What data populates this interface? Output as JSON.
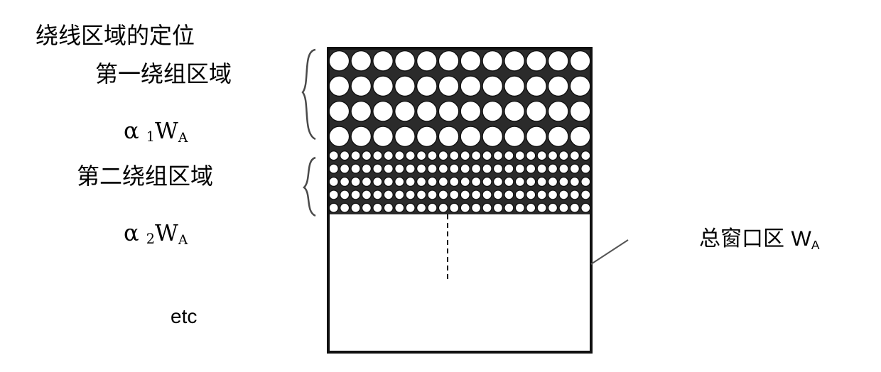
{
  "labels": {
    "title": "绕线区域的定位",
    "region1": "第一绕组区域",
    "alpha1": {
      "greek": "α",
      "index": "1",
      "symbol": "W",
      "subscript": "A"
    },
    "region2": "第二绕组区域",
    "alpha2": {
      "greek": "α",
      "index": "2",
      "symbol": "W",
      "subscript": "A"
    },
    "etc": "etc",
    "window": {
      "text": "总窗口区",
      "symbol": "W",
      "subscript": "A"
    }
  },
  "diagram": {
    "region1_rows": 4,
    "region1_cols": 12,
    "region2_rows": 5,
    "region2_cols": 24,
    "colors": {
      "stroke": "#111111",
      "fill": "#ffffff",
      "gap": "#2b2b2b",
      "brace": "#4a4a4a",
      "brace_edge": "#c8a060"
    }
  }
}
